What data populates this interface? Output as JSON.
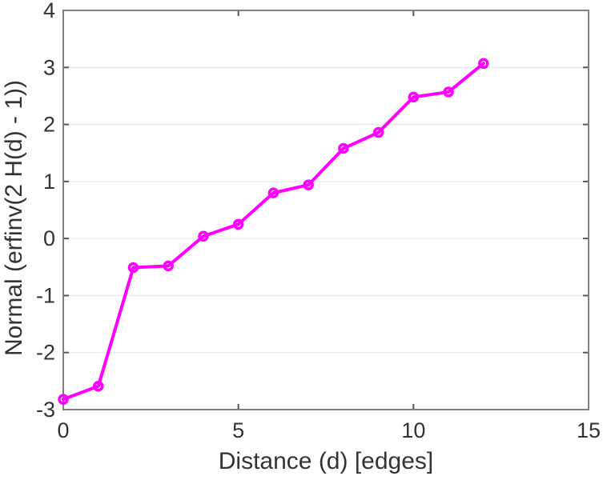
{
  "figure": {
    "background": "#ffffff"
  },
  "chart_data": {
    "type": "line",
    "title": "",
    "xlabel": "Distance (d) [edges]",
    "ylabel": "Normal (erfinv(2 H(d) - 1))",
    "x": [
      0,
      1,
      2,
      3,
      4,
      5,
      6,
      7,
      8,
      9,
      10,
      11,
      12
    ],
    "y": [
      -2.82,
      -2.59,
      -0.51,
      -0.48,
      0.04,
      0.25,
      0.8,
      0.94,
      1.58,
      1.86,
      2.48,
      2.57,
      3.07
    ],
    "xlim": [
      0,
      15
    ],
    "ylim": [
      -3,
      4
    ],
    "xticks": [
      0,
      5,
      10,
      15
    ],
    "yticks": [
      -3,
      -2,
      -1,
      0,
      1,
      2,
      3,
      4
    ],
    "grid": "horizontal-only",
    "legend": "none",
    "line_color": "#ff00ff",
    "marker": "hollow-circle",
    "axis_color": "#808080",
    "tick_color": "#555555",
    "grid_color": "#e8e8e8",
    "label_color": "#333333"
  }
}
